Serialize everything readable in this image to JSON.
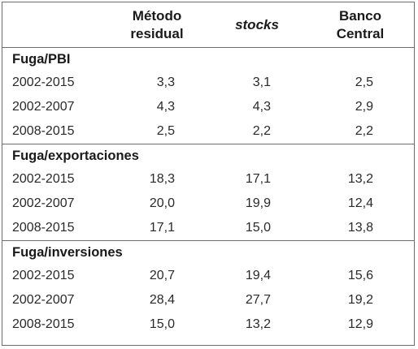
{
  "header": {
    "col0": "",
    "col1_line1": "Método",
    "col1_line2": "residual",
    "col2": "stocks",
    "col3_line1": "Banco",
    "col3_line2": "Central"
  },
  "sections": [
    {
      "title": "Fuga/PBI",
      "rows": [
        {
          "period": "2002-2015",
          "metodo_residual": "3,3",
          "stocks": "3,1",
          "banco_central": "2,5"
        },
        {
          "period": "2002-2007",
          "metodo_residual": "4,3",
          "stocks": "4,3",
          "banco_central": "2,9"
        },
        {
          "period": "2008-2015",
          "metodo_residual": "2,5",
          "stocks": "2,2",
          "banco_central": "2,2"
        }
      ]
    },
    {
      "title": "Fuga/exportaciones",
      "rows": [
        {
          "period": "2002-2015",
          "metodo_residual": "18,3",
          "stocks": "17,1",
          "banco_central": "13,2"
        },
        {
          "period": "2002-2007",
          "metodo_residual": "20,0",
          "stocks": "19,9",
          "banco_central": "12,4"
        },
        {
          "period": "2008-2015",
          "metodo_residual": "17,1",
          "stocks": "15,0",
          "banco_central": "13,8"
        }
      ]
    },
    {
      "title": "Fuga/inversiones",
      "rows": [
        {
          "period": "2002-2015",
          "metodo_residual": "20,7",
          "stocks": "19,4",
          "banco_central": "15,6"
        },
        {
          "period": "2002-2007",
          "metodo_residual": "28,4",
          "stocks": "27,7",
          "banco_central": "19,2"
        },
        {
          "period": "2008-2015",
          "metodo_residual": "15,0",
          "stocks": "13,2",
          "banco_central": "12,9"
        }
      ]
    }
  ]
}
